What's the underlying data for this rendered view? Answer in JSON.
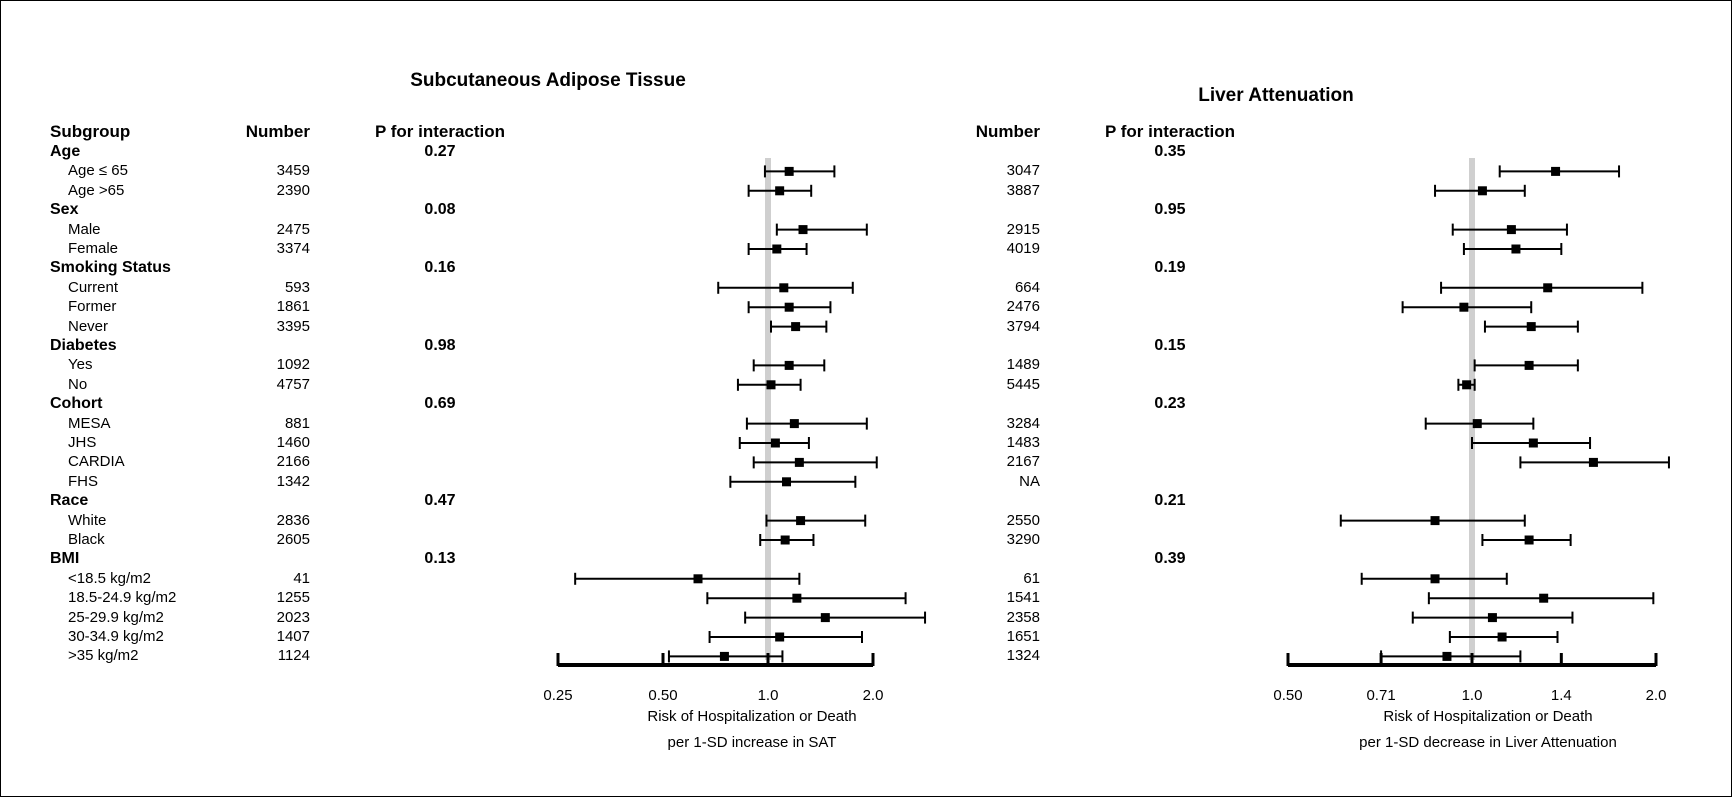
{
  "chart_data": [
    {
      "type": "forest",
      "title": "Subcutaneous Adipose Tissue",
      "columns": {
        "subgroup": "Subgroup",
        "number": "Number",
        "p": "P for interaction"
      },
      "xlabel": [
        "Risk of Hospitalization or Death",
        "per 1-SD increase in SAT"
      ],
      "x_scale": "log",
      "xlim": [
        0.25,
        2.0
      ],
      "xticks": [
        "0.25",
        "0.50",
        "1.0",
        "2.0"
      ],
      "xtick_values": [
        0.25,
        0.5,
        1.0,
        2.0
      ],
      "reference_line": 1.0,
      "rows": [
        {
          "label": "Age",
          "group": true,
          "p": "0.27"
        },
        {
          "label": "Age ≤ 65",
          "n": "3459",
          "est": 1.15,
          "lo": 0.98,
          "hi": 1.55
        },
        {
          "label": "Age >65",
          "n": "2390",
          "est": 1.08,
          "lo": 0.88,
          "hi": 1.33
        },
        {
          "label": "Sex",
          "group": true,
          "p": "0.08"
        },
        {
          "label": "Male",
          "n": "2475",
          "est": 1.26,
          "lo": 1.06,
          "hi": 1.92
        },
        {
          "label": "Female",
          "n": "3374",
          "est": 1.06,
          "lo": 0.88,
          "hi": 1.29
        },
        {
          "label": "Smoking Status",
          "group": true,
          "p": "0.16"
        },
        {
          "label": "Current",
          "n": "593",
          "est": 1.11,
          "lo": 0.72,
          "hi": 1.75
        },
        {
          "label": "Former",
          "n": "1861",
          "est": 1.15,
          "lo": 0.88,
          "hi": 1.51
        },
        {
          "label": "Never",
          "n": "3395",
          "est": 1.2,
          "lo": 1.02,
          "hi": 1.47
        },
        {
          "label": "Diabetes",
          "group": true,
          "p": "0.98"
        },
        {
          "label": "Yes",
          "n": "1092",
          "est": 1.15,
          "lo": 0.91,
          "hi": 1.45
        },
        {
          "label": "No",
          "n": "4757",
          "est": 1.02,
          "lo": 0.82,
          "hi": 1.24
        },
        {
          "label": "Cohort",
          "group": true,
          "p": "0.69"
        },
        {
          "label": "MESA",
          "n": "881",
          "est": 1.19,
          "lo": 0.87,
          "hi": 1.92
        },
        {
          "label": "JHS",
          "n": "1460",
          "est": 1.05,
          "lo": 0.83,
          "hi": 1.31
        },
        {
          "label": "CARDIA",
          "n": "2166",
          "est": 1.23,
          "lo": 0.91,
          "hi": 2.05
        },
        {
          "label": "FHS",
          "n": "1342",
          "est": 1.13,
          "lo": 0.78,
          "hi": 1.78
        },
        {
          "label": "Race",
          "group": true,
          "p": "0.47"
        },
        {
          "label": "White",
          "n": "2836",
          "est": 1.24,
          "lo": 0.99,
          "hi": 1.9
        },
        {
          "label": "Black",
          "n": "2605",
          "est": 1.12,
          "lo": 0.95,
          "hi": 1.35
        },
        {
          "label": "BMI",
          "group": true,
          "p": "0.13"
        },
        {
          "label": "<18.5 kg/m2",
          "n": "41",
          "est": 0.63,
          "lo": 0.28,
          "hi": 1.23
        },
        {
          "label": "18.5-24.9 kg/m2",
          "n": "1255",
          "est": 1.21,
          "lo": 0.67,
          "hi": 2.48
        },
        {
          "label": "25-29.9 kg/m2",
          "n": "2023",
          "est": 1.46,
          "lo": 0.86,
          "hi": 2.82
        },
        {
          "label": "30-34.9 kg/m2",
          "n": "1407",
          "est": 1.08,
          "lo": 0.68,
          "hi": 1.86
        },
        {
          "label": ">35 kg/m2",
          "n": "1124",
          "est": 0.75,
          "lo": 0.52,
          "hi": 1.1
        }
      ]
    },
    {
      "type": "forest",
      "title": "Liver Attenuation",
      "columns": {
        "number": "Number",
        "p": "P for interaction"
      },
      "xlabel": [
        "Risk of Hospitalization or Death",
        "per 1-SD decrease in Liver Attenuation"
      ],
      "x_scale": "log",
      "xlim": [
        0.5,
        2.0
      ],
      "xticks": [
        "0.50",
        "0.71",
        "1.0",
        "1.4",
        "2.0"
      ],
      "xtick_values": [
        0.5,
        0.71,
        1.0,
        1.4,
        2.0
      ],
      "reference_line": 1.0,
      "rows": [
        {
          "label": "Age",
          "group": true,
          "p": "0.35"
        },
        {
          "label": "Age ≤ 65",
          "n": "3047",
          "est": 1.37,
          "lo": 1.11,
          "hi": 1.74
        },
        {
          "label": "Age >65",
          "n": "3887",
          "est": 1.04,
          "lo": 0.87,
          "hi": 1.22
        },
        {
          "label": "Sex",
          "group": true,
          "p": "0.95"
        },
        {
          "label": "Male",
          "n": "2915",
          "est": 1.16,
          "lo": 0.93,
          "hi": 1.43
        },
        {
          "label": "Female",
          "n": "4019",
          "est": 1.18,
          "lo": 0.97,
          "hi": 1.4
        },
        {
          "label": "Smoking Status",
          "group": true,
          "p": "0.19"
        },
        {
          "label": "Current",
          "n": "664",
          "est": 1.33,
          "lo": 0.89,
          "hi": 1.9
        },
        {
          "label": "Former",
          "n": "2476",
          "est": 0.97,
          "lo": 0.77,
          "hi": 1.25
        },
        {
          "label": "Never",
          "n": "3794",
          "est": 1.25,
          "lo": 1.05,
          "hi": 1.49
        },
        {
          "label": "Diabetes",
          "group": true,
          "p": "0.15"
        },
        {
          "label": "Yes",
          "n": "1489",
          "est": 1.24,
          "lo": 1.01,
          "hi": 1.49
        },
        {
          "label": "No",
          "n": "5445",
          "est": 0.98,
          "lo": 0.95,
          "hi": 1.01
        },
        {
          "label": "Cohort",
          "group": true,
          "p": "0.23"
        },
        {
          "label": "MESA",
          "n": "3284",
          "est": 1.02,
          "lo": 0.84,
          "hi": 1.26
        },
        {
          "label": "JHS",
          "n": "1483",
          "est": 1.26,
          "lo": 1.0,
          "hi": 1.56
        },
        {
          "label": "CARDIA",
          "n": "2167",
          "est": 1.58,
          "lo": 1.2,
          "hi": 2.1
        },
        {
          "label": "FHS",
          "n": "NA"
        },
        {
          "label": "Race",
          "group": true,
          "p": "0.21"
        },
        {
          "label": "White",
          "n": "2550",
          "est": 0.87,
          "lo": 0.61,
          "hi": 1.22
        },
        {
          "label": "Black",
          "n": "3290",
          "est": 1.24,
          "lo": 1.04,
          "hi": 1.45
        },
        {
          "label": "BMI",
          "group": true,
          "p": "0.39"
        },
        {
          "label": "<18.5 kg/m2",
          "n": "61",
          "est": 0.87,
          "lo": 0.66,
          "hi": 1.14
        },
        {
          "label": "18.5-24.9 kg/m2",
          "n": "1541",
          "est": 1.31,
          "lo": 0.85,
          "hi": 1.98
        },
        {
          "label": "25-29.9 kg/m2",
          "n": "2358",
          "est": 1.08,
          "lo": 0.8,
          "hi": 1.46
        },
        {
          "label": "30-34.9 kg/m2",
          "n": "1651",
          "est": 1.12,
          "lo": 0.92,
          "hi": 1.38
        },
        {
          "label": ">35 kg/m2",
          "n": "1324",
          "est": 0.91,
          "lo": 0.71,
          "hi": 1.2
        }
      ]
    }
  ]
}
